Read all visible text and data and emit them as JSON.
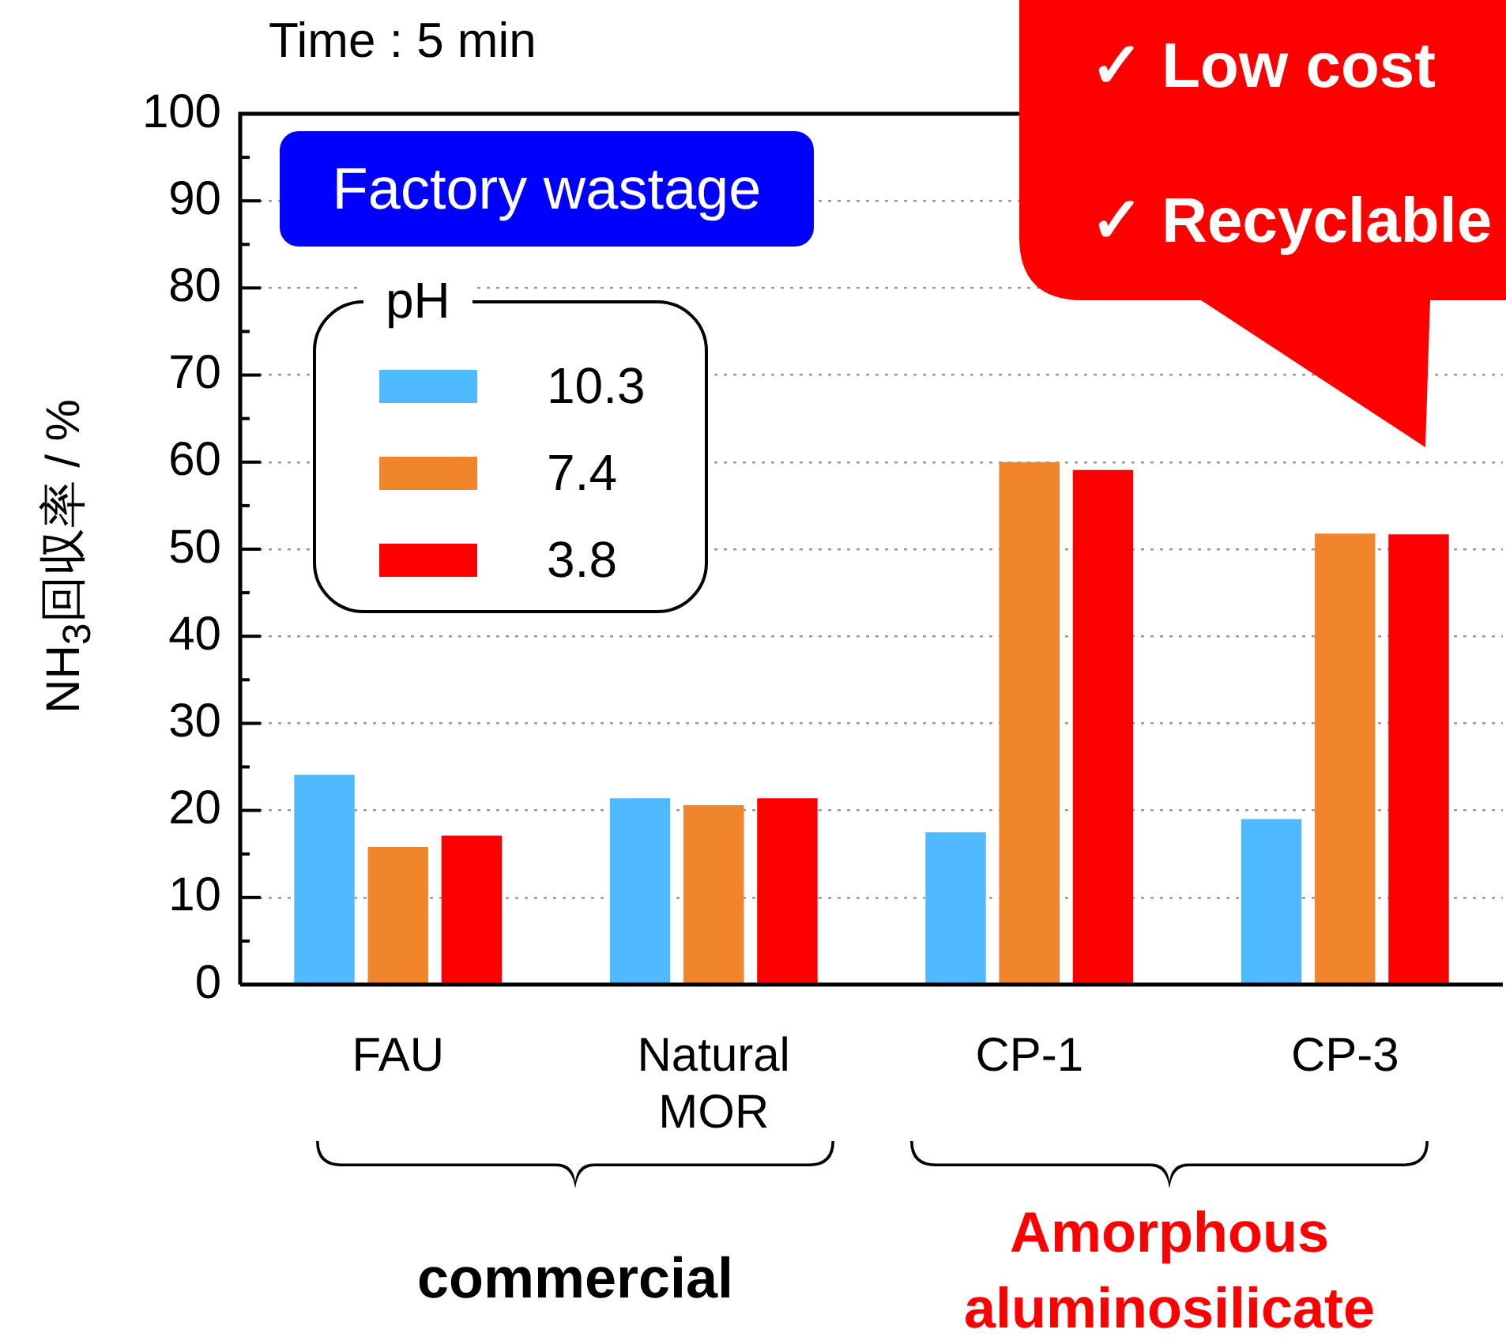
{
  "chart_data": {
    "type": "bar",
    "title": "Time : 5 min",
    "ylabel": "NH$_{3}$回収率 / %",
    "legend_title": "pH",
    "categories": [
      "FAU",
      "Natural MOR",
      "CP-1",
      "CP-3"
    ],
    "series": [
      {
        "name": "10.3",
        "color": "#4fbaff",
        "values": [
          24.1,
          21.4,
          17.5,
          19.0
        ]
      },
      {
        "name": "7.4",
        "color": "#f0852b",
        "values": [
          15.8,
          20.6,
          60.0,
          51.8
        ]
      },
      {
        "name": "3.8",
        "color": "#ff0000",
        "values": [
          17.1,
          21.4,
          59.1,
          51.7
        ]
      }
    ],
    "ylim": [
      0,
      100
    ],
    "yticks": [
      0,
      {
        "value": 5,
        "label": null
      },
      10,
      {
        "value": 15,
        "label": null
      },
      20,
      {
        "value": 25,
        "label": null
      },
      30,
      {
        "value": 35,
        "label": null
      },
      40,
      {
        "value": 45,
        "label": null
      },
      50,
      {
        "value": 55,
        "label": null
      },
      60,
      {
        "value": 65,
        "label": null
      },
      70,
      {
        "value": 75,
        "label": null
      },
      80,
      {
        "value": 85,
        "label": null
      },
      90,
      {
        "value": 95,
        "label": null
      },
      100
    ],
    "grid": "y",
    "legend": "top left",
    "annotations": [
      "Factory wastage",
      "commercial",
      "Amorphous aluminosilicate",
      "✓ Low cost",
      "✓ Recyclable"
    ]
  }
}
